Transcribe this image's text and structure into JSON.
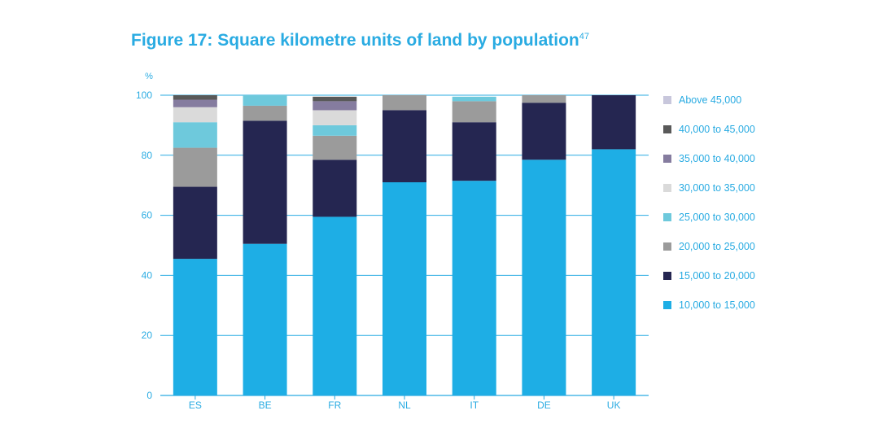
{
  "chart_data": {
    "type": "bar",
    "stacked": true,
    "title": "Figure 17: Square kilometre units of land by population",
    "title_superscript": "47",
    "ylabel": "%",
    "xlabel": "",
    "ylim": [
      0,
      100
    ],
    "yticks": [
      0,
      20,
      40,
      60,
      80,
      100
    ],
    "grid": true,
    "legend_position": "right",
    "categories": [
      "ES",
      "BE",
      "FR",
      "NL",
      "IT",
      "DE",
      "UK"
    ],
    "series": [
      {
        "name": "10,000 to 15,000",
        "color": "#1eaee5",
        "values": [
          45.5,
          50.5,
          59.5,
          71,
          71.5,
          78.5,
          82
        ]
      },
      {
        "name": "15,000 to 20,000",
        "color": "#252651",
        "values": [
          24,
          41,
          19,
          24,
          19.5,
          19,
          18
        ]
      },
      {
        "name": "20,000 to 25,000",
        "color": "#9b9b9b",
        "values": [
          13,
          5,
          8,
          5,
          7,
          2.5,
          0
        ]
      },
      {
        "name": "25,000 to 30,000",
        "color": "#6ec9dc",
        "values": [
          8.5,
          3.5,
          3.5,
          0,
          1.5,
          0,
          0
        ]
      },
      {
        "name": "30,000 to 35,000",
        "color": "#dadada",
        "values": [
          5,
          0,
          5,
          0,
          0,
          0,
          0
        ]
      },
      {
        "name": "35,000 to 40,000",
        "color": "#857c9f",
        "values": [
          2.5,
          0,
          3,
          0,
          0,
          0,
          0
        ]
      },
      {
        "name": "40,000 to 45,000",
        "color": "#595959",
        "values": [
          1.5,
          0,
          1.5,
          0,
          0,
          0,
          0
        ]
      },
      {
        "name": "Above 45,000",
        "color": "#c8c7dc",
        "values": [
          0,
          0,
          0,
          0,
          0,
          0,
          0
        ]
      }
    ],
    "legend_order": [
      "Above 45,000",
      "40,000 to 45,000",
      "35,000 to 40,000",
      "30,000 to 35,000",
      "25,000 to 30,000",
      "20,000 to 25,000",
      "15,000 to 20,000",
      "10,000 to 15,000"
    ],
    "colors": {
      "accent": "#29abe2",
      "axis": "#29abe2"
    }
  }
}
